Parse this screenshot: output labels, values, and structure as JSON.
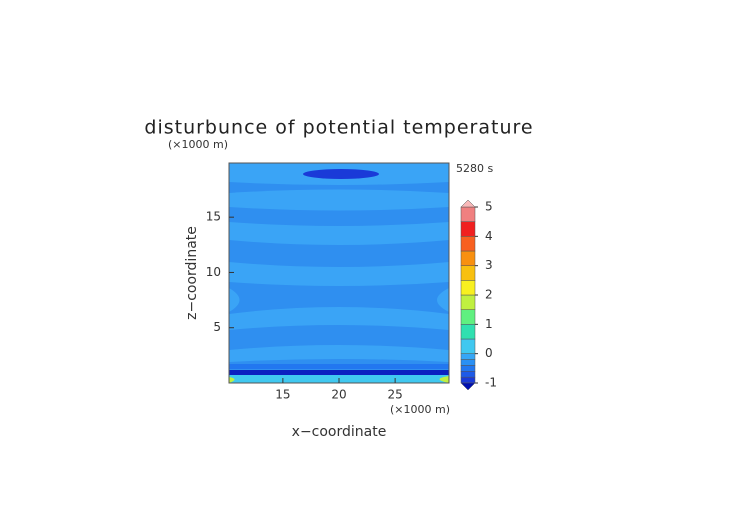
{
  "chart_data": {
    "type": "contour",
    "title": "disturbunce of potential temperature",
    "x_label": "x−coordinate",
    "y_label": "z−coordinate",
    "x_unit": "(×1000 m)",
    "y_unit": "(×1000 m)",
    "time_label": "5280 s",
    "xlim": [
      10.2,
      29.8
    ],
    "xticks": [
      15,
      20,
      25
    ],
    "ylim": [
      0,
      19.9
    ],
    "yticks": [
      5,
      10,
      15
    ],
    "colorbar": {
      "levels": [
        -1,
        -0.8,
        -0.6,
        -0.4,
        -0.2,
        0,
        0.5,
        1,
        1.5,
        2,
        2.5,
        3,
        3.5,
        4,
        4.5,
        5
      ],
      "colors": [
        "#1a3ad8",
        "#1e5ae8",
        "#2277f0",
        "#2a90f4",
        "#36a6f6",
        "#40c8f0",
        "#30e0b0",
        "#60f080",
        "#c0f040",
        "#f8f020",
        "#f8c010",
        "#f89010",
        "#f86020",
        "#f02020",
        "#f08080"
      ],
      "extend_colors": [
        "#0010b0",
        "#f8b8b8"
      ],
      "ticks": [
        -1,
        0,
        1,
        2,
        3,
        4,
        5
      ]
    }
  }
}
